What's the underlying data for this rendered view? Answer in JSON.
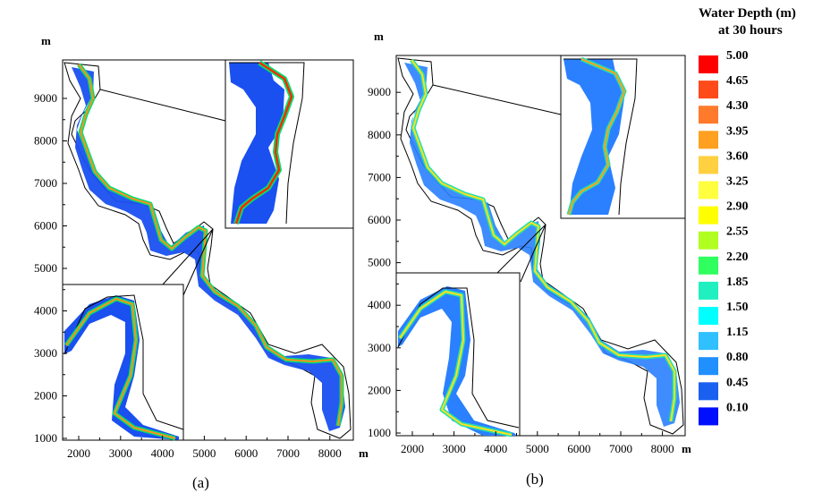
{
  "legend": {
    "title_line1": "Water Depth (m)",
    "title_line2": "at 30 hours",
    "entries": [
      {
        "value": "5.00",
        "color": "#ff0000"
      },
      {
        "value": "4.65",
        "color": "#ff4a1a"
      },
      {
        "value": "4.30",
        "color": "#ff7a2a"
      },
      {
        "value": "3.95",
        "color": "#ffa020"
      },
      {
        "value": "3.60",
        "color": "#ffd040"
      },
      {
        "value": "3.25",
        "color": "#ffff40"
      },
      {
        "value": "2.90",
        "color": "#ffff00"
      },
      {
        "value": "2.55",
        "color": "#b0ff20"
      },
      {
        "value": "2.20",
        "color": "#30ff60"
      },
      {
        "value": "1.85",
        "color": "#20f0c0"
      },
      {
        "value": "1.50",
        "color": "#00ffff"
      },
      {
        "value": "1.15",
        "color": "#30c0ff"
      },
      {
        "value": "0.80",
        "color": "#2090ff"
      },
      {
        "value": "0.45",
        "color": "#1a60f0"
      },
      {
        "value": "0.10",
        "color": "#0010ff"
      }
    ]
  },
  "panels": [
    {
      "label": "(a)",
      "axis_unit": "m",
      "x_ticks": [
        "2000",
        "3000",
        "4000",
        "5000",
        "6000",
        "7000",
        "8000"
      ],
      "y_ticks": [
        "1000",
        "2000",
        "3000",
        "4000",
        "5000",
        "6000",
        "7000",
        "8000",
        "9000"
      ]
    },
    {
      "label": "(b)",
      "axis_unit": "m",
      "x_ticks": [
        "2000",
        "3000",
        "4000",
        "5000",
        "6000",
        "7000",
        "8000"
      ],
      "y_ticks": [
        "1000",
        "2000",
        "3000",
        "4000",
        "5000",
        "6000",
        "7000",
        "8000",
        "9000"
      ]
    }
  ]
}
